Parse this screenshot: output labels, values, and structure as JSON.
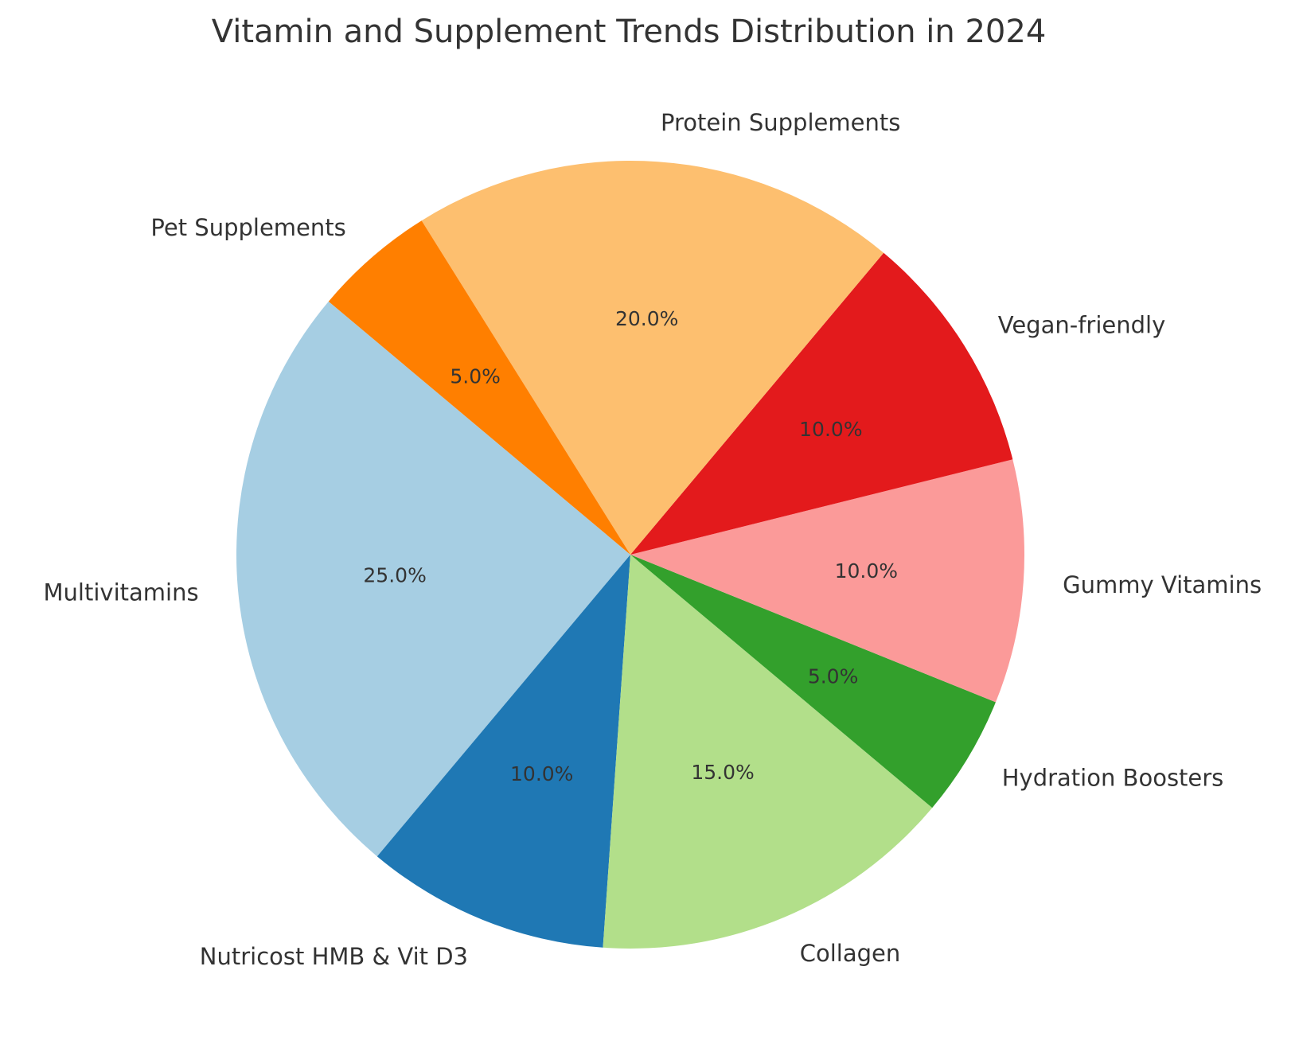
{
  "chart_data": {
    "type": "pie",
    "title": "Vitamin and Supplement Trends Distribution in 2024",
    "start_angle_deg": 140,
    "direction": "counterclockwise",
    "slices": [
      {
        "label": "Multivitamins",
        "value": 25.0,
        "pct_text": "25.0%",
        "color": "#a6cee3"
      },
      {
        "label": "Nutricost HMB & Vit D3",
        "value": 10.0,
        "pct_text": "10.0%",
        "color": "#1f78b4"
      },
      {
        "label": "Collagen",
        "value": 15.0,
        "pct_text": "15.0%",
        "color": "#b2df8a"
      },
      {
        "label": "Hydration Boosters",
        "value": 5.0,
        "pct_text": "5.0%",
        "color": "#33a02c"
      },
      {
        "label": "Gummy Vitamins",
        "value": 10.0,
        "pct_text": "10.0%",
        "color": "#fb9a99"
      },
      {
        "label": "Vegan-friendly",
        "value": 10.0,
        "pct_text": "10.0%",
        "color": "#e31a1c"
      },
      {
        "label": "Protein Supplements",
        "value": 20.0,
        "pct_text": "20.0%",
        "color": "#fdbf6f"
      },
      {
        "label": "Pet Supplements",
        "value": 5.0,
        "pct_text": "5.0%",
        "color": "#ff7f00"
      }
    ]
  }
}
